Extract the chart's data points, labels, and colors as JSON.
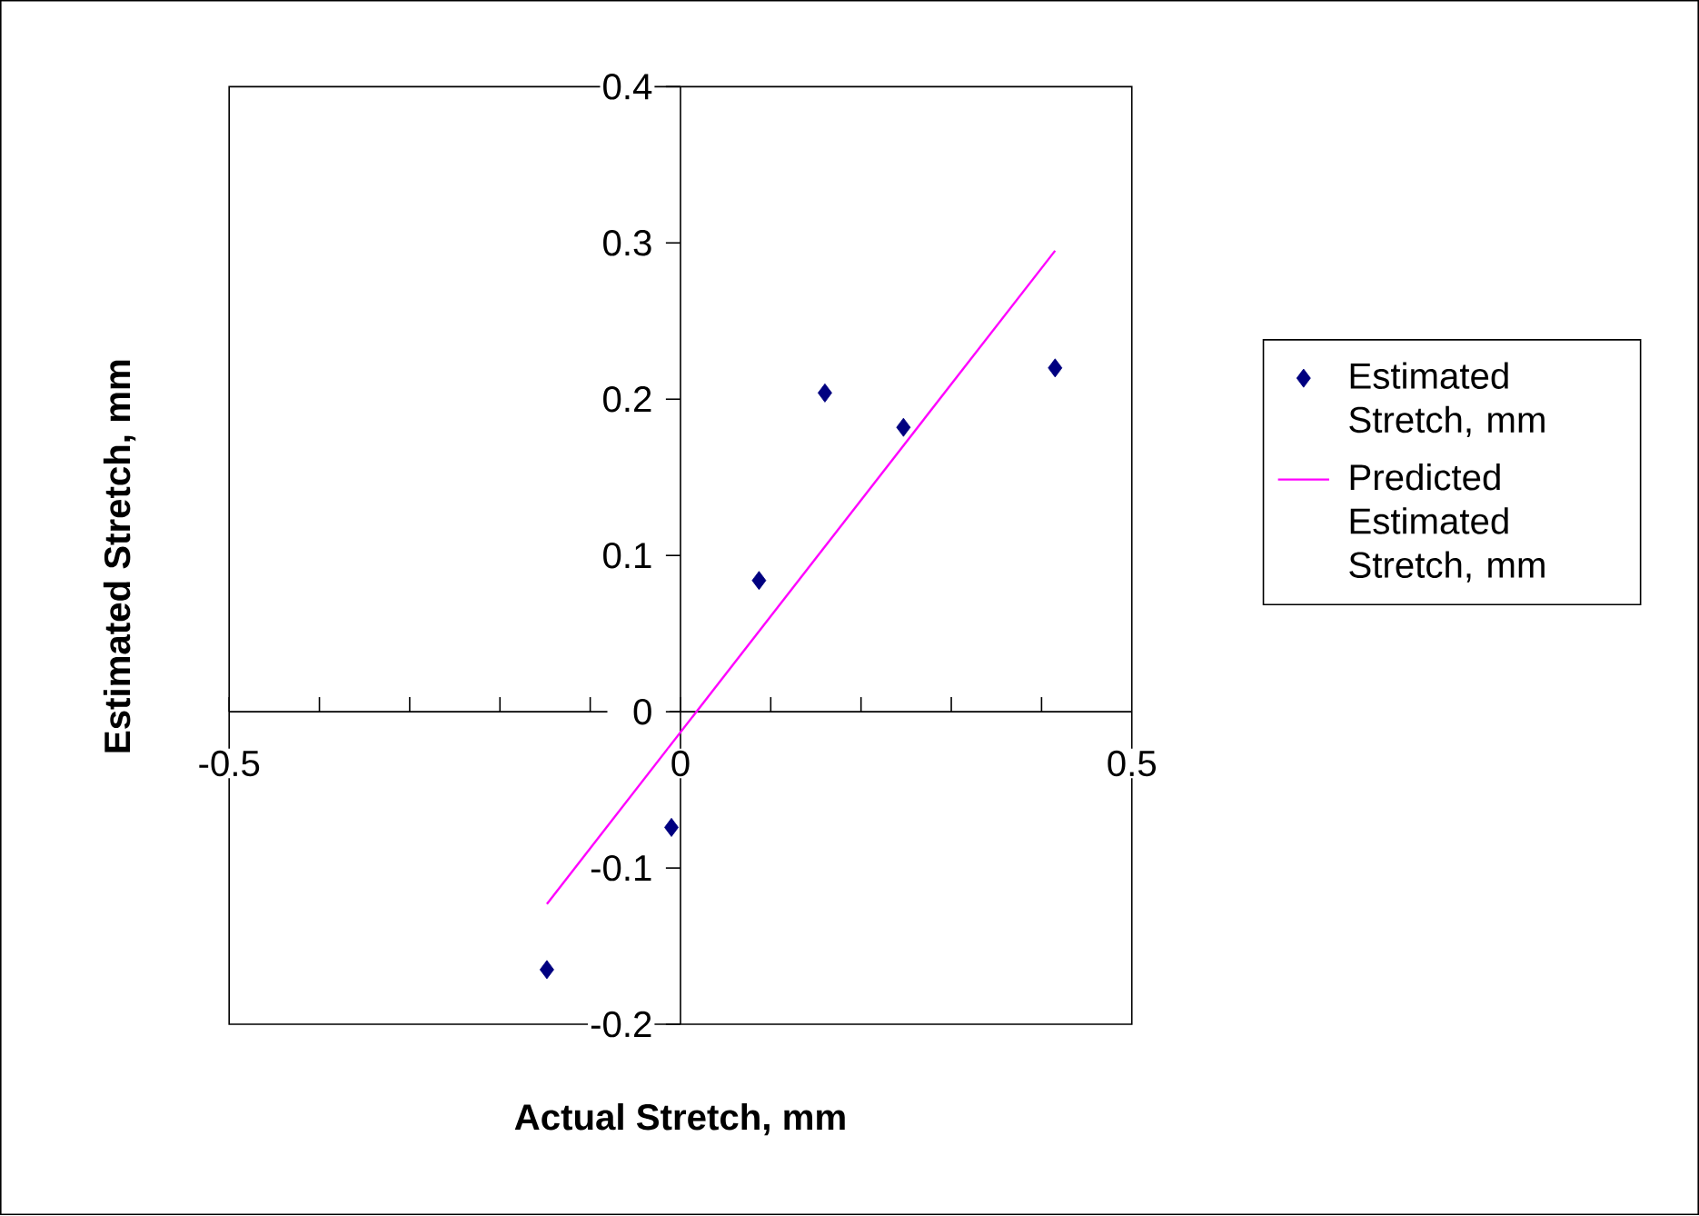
{
  "chart_data": {
    "type": "scatter",
    "xlabel": "Actual Stretch, mm",
    "ylabel": "Estimated Stretch, mm",
    "xlim": [
      -0.5,
      0.5
    ],
    "xticks": [
      -0.5,
      0,
      0.5
    ],
    "ylim": [
      -0.2,
      0.4
    ],
    "yticks": [
      -0.2,
      -0.1,
      0,
      0.1,
      0.2,
      0.3,
      0.4
    ],
    "marker": "diamond",
    "legend": "right",
    "grid": false,
    "series": [
      {
        "name": "Estimated Stretch, mm",
        "color": "#000080",
        "x": [
          -0.148,
          -0.01,
          0.087,
          0.16,
          0.247,
          0.415
        ],
        "values": [
          -0.165,
          -0.074,
          0.084,
          0.204,
          0.182,
          0.22
        ]
      },
      {
        "name": "Predicted Estimated Stretch, mm",
        "type": "line",
        "marker": "none",
        "color": "#ff00ff",
        "x": [
          -0.148,
          0.415
        ],
        "values": [
          -0.123,
          0.295
        ]
      }
    ]
  }
}
